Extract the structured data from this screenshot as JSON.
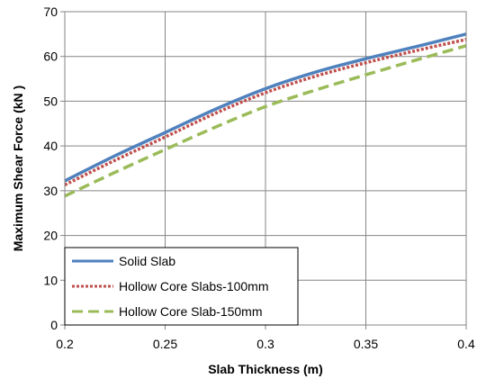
{
  "chart_data": {
    "type": "line",
    "xlabel": "Slab Thickness (m)",
    "ylabel": "Maximum Shear Force (kN )",
    "xlim": [
      0.2,
      0.4
    ],
    "ylim": [
      0,
      70
    ],
    "x_ticks": [
      "0.2",
      "0.25",
      "0.3",
      "0.35",
      "0.4"
    ],
    "y_ticks": [
      "0",
      "10",
      "20",
      "30",
      "40",
      "50",
      "60",
      "70"
    ],
    "grid": true,
    "legend_position": "bottom-left",
    "x": [
      0.2,
      0.225,
      0.25,
      0.275,
      0.3,
      0.325,
      0.35,
      0.375,
      0.4
    ],
    "series": [
      {
        "name": "Solid Slab",
        "color": "#4f81bd",
        "dash": "solid",
        "values": [
          32.2,
          37.8,
          43.0,
          48.2,
          52.8,
          56.5,
          59.5,
          62.2,
          65.0
        ]
      },
      {
        "name": "Hollow Core Slabs-100mm",
        "color": "#c0504d",
        "dash": "dotted",
        "values": [
          31.3,
          36.8,
          42.0,
          47.3,
          51.9,
          55.6,
          58.6,
          61.3,
          63.8
        ]
      },
      {
        "name": "Hollow Core Slab-150mm",
        "color": "#9bbb59",
        "dash": "dashed",
        "values": [
          28.8,
          34.1,
          39.2,
          44.2,
          48.8,
          52.5,
          55.9,
          59.2,
          62.4
        ]
      }
    ]
  }
}
